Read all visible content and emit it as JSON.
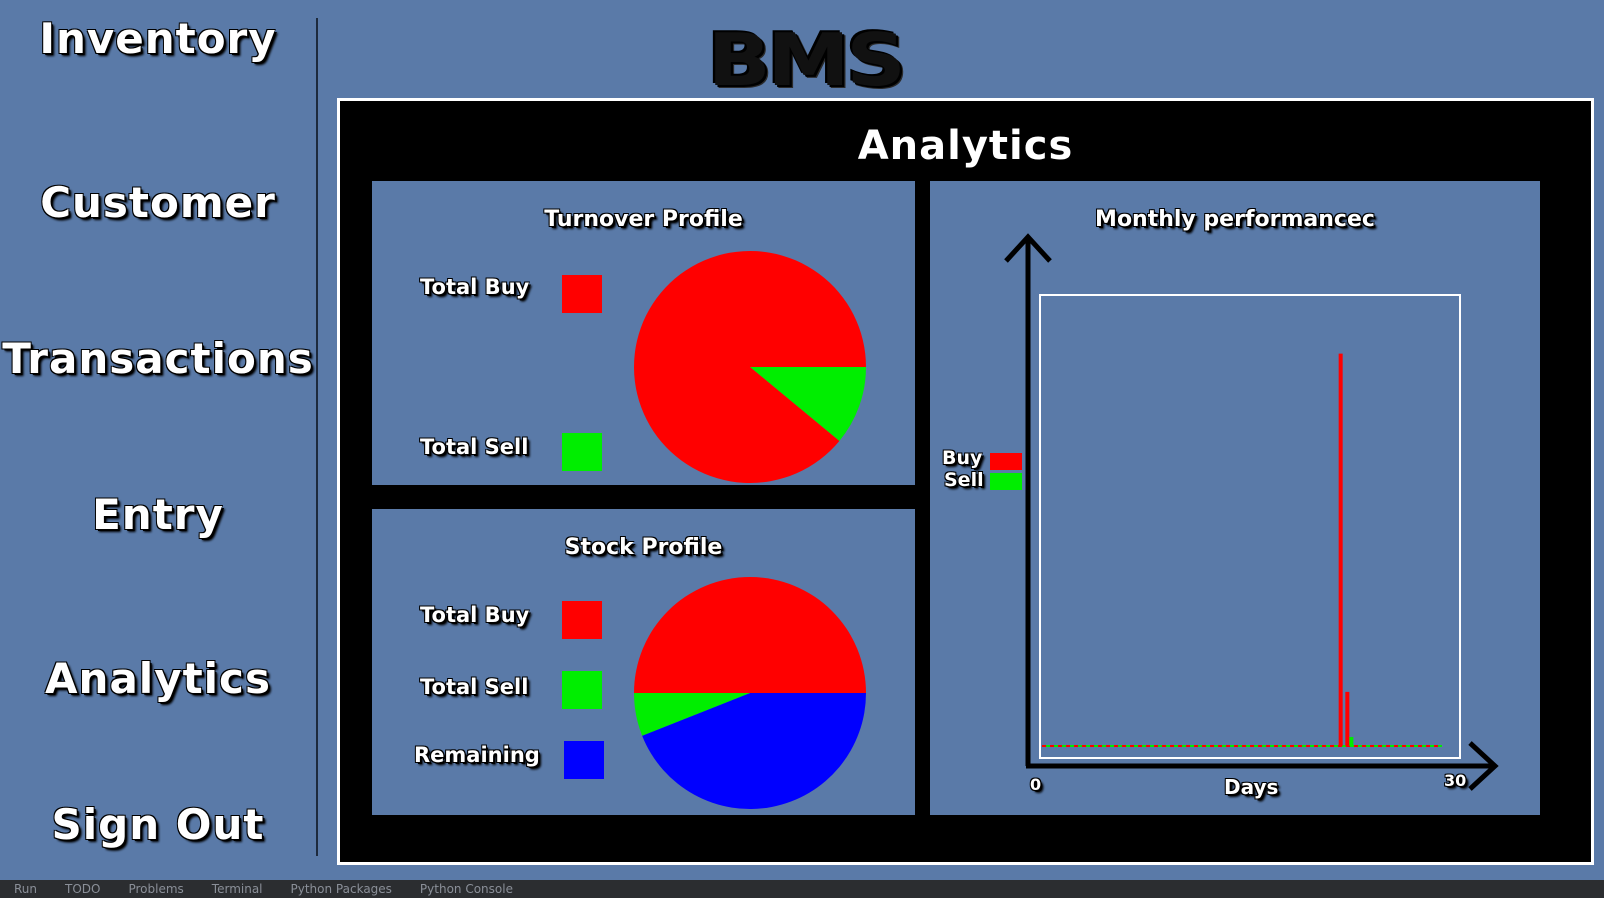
{
  "sidebar": {
    "items": [
      {
        "label": "Inventory"
      },
      {
        "label": "Customer"
      },
      {
        "label": "Transactions"
      },
      {
        "label": "Entry"
      },
      {
        "label": "Analytics"
      },
      {
        "label": "Sign Out"
      }
    ]
  },
  "logo": "BMS",
  "panel": {
    "title": "Analytics"
  },
  "turnover": {
    "title": "Turnover Profile",
    "legend": [
      {
        "label": "Total Buy",
        "color": "#ff0000"
      },
      {
        "label": "Total Sell",
        "color": "#00ee00"
      }
    ]
  },
  "stock": {
    "title": "Stock Profile",
    "legend": [
      {
        "label": "Total Buy",
        "color": "#ff0000"
      },
      {
        "label": "Total Sell",
        "color": "#00ee00"
      },
      {
        "label": "Remaining",
        "color": "#0000ff"
      }
    ]
  },
  "monthly": {
    "title": "Monthly performancec",
    "legend": [
      {
        "label": "Buy",
        "color": "#ff0000"
      },
      {
        "label": "Sell",
        "color": "#00ee00"
      }
    ],
    "x_min_label": "0",
    "x_max_label": "30",
    "x_axis_label": "Days"
  },
  "chart_data": [
    {
      "type": "pie",
      "title": "Turnover Profile",
      "labels": [
        "Total Buy",
        "Total Sell"
      ],
      "values": [
        89,
        11
      ],
      "colors": [
        "#ff0000",
        "#00ee00"
      ]
    },
    {
      "type": "pie",
      "title": "Stock Profile",
      "labels": [
        "Total Buy",
        "Total Sell",
        "Remaining"
      ],
      "values": [
        50,
        6,
        44
      ],
      "colors": [
        "#ff0000",
        "#00ee00",
        "#0000ff"
      ]
    },
    {
      "type": "bar",
      "title": "Monthly performancec",
      "xlabel": "Days",
      "xlim": [
        0,
        30
      ],
      "ylim": [
        0,
        1
      ],
      "series": [
        {
          "name": "Buy",
          "color": "#ff0000",
          "points": [
            {
              "x": 22.4,
              "y": 0.87
            },
            {
              "x": 22.9,
              "y": 0.12
            }
          ]
        },
        {
          "name": "Sell",
          "color": "#00ee00",
          "points": [
            {
              "x": 23.2,
              "y": 0.02
            }
          ]
        }
      ]
    }
  ],
  "taskbar": {
    "tabs": [
      {
        "label": "Run"
      },
      {
        "label": "TODO"
      },
      {
        "label": "Problems"
      },
      {
        "label": "Terminal"
      },
      {
        "label": "Python Packages"
      },
      {
        "label": "Python Console"
      }
    ]
  }
}
